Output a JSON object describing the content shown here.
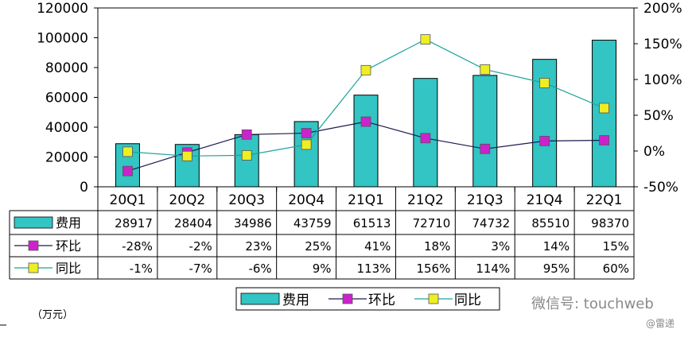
{
  "chart_data": {
    "type": "bar+line",
    "categories": [
      "20Q1",
      "20Q2",
      "20Q3",
      "20Q4",
      "21Q1",
      "21Q2",
      "21Q3",
      "21Q4",
      "22Q1"
    ],
    "series": [
      {
        "name": "费用",
        "kind": "bar",
        "axis": "left",
        "color": "#33C4C4",
        "values": [
          28917,
          28404,
          34986,
          43759,
          61513,
          72710,
          74732,
          85510,
          98370
        ],
        "labels": [
          "28917",
          "28404",
          "34986",
          "43759",
          "61513",
          "72710",
          "74732",
          "85510",
          "98370"
        ]
      },
      {
        "name": "环比",
        "kind": "line",
        "axis": "right",
        "line_color": "#1a1a4e",
        "marker_color": "#cc22cc",
        "values": [
          -28,
          -2,
          23,
          25,
          41,
          18,
          3,
          14,
          15
        ],
        "labels": [
          "-28%",
          "-2%",
          "23%",
          "25%",
          "41%",
          "18%",
          "3%",
          "14%",
          "15%"
        ]
      },
      {
        "name": "同比",
        "kind": "line",
        "axis": "right",
        "line_color": "#1aa39a",
        "marker_color": "#eeee22",
        "values": [
          -1,
          -7,
          -6,
          9,
          113,
          156,
          114,
          95,
          60
        ],
        "labels": [
          "-1%",
          "-7%",
          "-6%",
          "9%",
          "113%",
          "156%",
          "114%",
          "95%",
          "60%"
        ]
      }
    ],
    "left_axis": {
      "min": 0,
      "max": 120000,
      "ticks": [
        "0",
        "20000",
        "40000",
        "60000",
        "80000",
        "100000",
        "120000"
      ]
    },
    "right_axis": {
      "min": -50,
      "max": 200,
      "ticks": [
        "-50%",
        "0%",
        "50%",
        "100%",
        "150%",
        "200%"
      ]
    },
    "unit_label": "（万元）",
    "legend": [
      "费用",
      "环比",
      "同比"
    ]
  },
  "watermark": {
    "text": "微信号: touchweb",
    "sub": "@雷递"
  }
}
